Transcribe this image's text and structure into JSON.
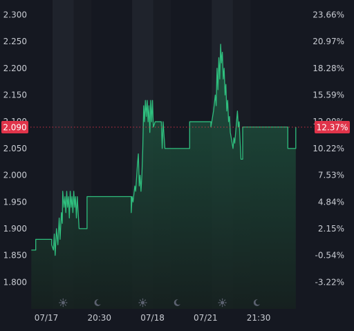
{
  "chart_data": {
    "type": "line",
    "y_ticks": [
      "2.300",
      "2.250",
      "2.200",
      "2.150",
      "2.100",
      "2.050",
      "2.000",
      "1.950",
      "1.900",
      "1.850",
      "1.800"
    ],
    "y_tick_values": [
      2.3,
      2.25,
      2.2,
      2.15,
      2.1,
      2.05,
      2.0,
      1.95,
      1.9,
      1.85,
      1.8
    ],
    "pct_ticks": [
      "23.66%",
      "20.97%",
      "18.28%",
      "15.59%",
      "12.90%",
      "10.22%",
      "7.53%",
      "4.84%",
      "2.15%",
      "-0.54%",
      "-3.22%"
    ],
    "x_ticks": [
      {
        "label": "07/17",
        "t": 0.3
      },
      {
        "label": "20:30",
        "t": 6.3
      },
      {
        "label": "07/18",
        "t": 12.3
      },
      {
        "label": "07/21",
        "t": 18.3
      },
      {
        "label": "21:30",
        "t": 24.3
      }
    ],
    "x_range": [
      -1.5,
      30
    ],
    "ylim": [
      1.75,
      2.32
    ],
    "current_value": "2.090",
    "current_value_num": 2.09,
    "current_pct": "12.37%",
    "bands": [
      {
        "from": 1.0,
        "to": 3.4,
        "kind": "night"
      },
      {
        "from": 3.4,
        "to": 5.4,
        "kind": "day"
      },
      {
        "from": 10.0,
        "to": 12.4,
        "kind": "night"
      },
      {
        "from": 12.4,
        "to": 14.4,
        "kind": "day"
      },
      {
        "from": 19.0,
        "to": 21.4,
        "kind": "night"
      },
      {
        "from": 21.4,
        "to": 23.4,
        "kind": "day"
      }
    ],
    "markers": [
      {
        "kind": "sun",
        "t": 2.2,
        "icon": "sun-icon"
      },
      {
        "kind": "moon",
        "t": 6.1,
        "icon": "moon-icon"
      },
      {
        "kind": "sun",
        "t": 11.2,
        "icon": "sun-icon"
      },
      {
        "kind": "moon",
        "t": 15.1,
        "icon": "moon-icon"
      },
      {
        "kind": "sun",
        "t": 20.2,
        "icon": "sun-icon"
      },
      {
        "kind": "moon",
        "t": 24.1,
        "icon": "moon-icon"
      }
    ],
    "series": [
      {
        "points": [
          [
            -1.4,
            1.86
          ],
          [
            -0.9,
            1.86
          ],
          [
            -0.9,
            1.88
          ],
          [
            0.9,
            1.88
          ],
          [
            0.9,
            1.87
          ],
          [
            1.1,
            1.86
          ],
          [
            1.2,
            1.89
          ],
          [
            1.3,
            1.85
          ],
          [
            1.45,
            1.9
          ],
          [
            1.6,
            1.87
          ],
          [
            1.75,
            1.92
          ],
          [
            1.85,
            1.88
          ],
          [
            2.0,
            1.93
          ],
          [
            2.1,
            1.91
          ],
          [
            2.15,
            1.97
          ],
          [
            2.3,
            1.94
          ],
          [
            2.4,
            1.96
          ],
          [
            2.5,
            1.93
          ],
          [
            2.6,
            1.97
          ],
          [
            2.7,
            1.94
          ],
          [
            2.8,
            1.96
          ],
          [
            2.9,
            1.92
          ],
          [
            3.0,
            1.97
          ],
          [
            3.1,
            1.94
          ],
          [
            3.2,
            1.96
          ],
          [
            3.3,
            1.93
          ],
          [
            3.4,
            1.97
          ],
          [
            3.5,
            1.94
          ],
          [
            3.6,
            1.96
          ],
          [
            3.7,
            1.92
          ],
          [
            3.8,
            1.96
          ],
          [
            3.9,
            1.93
          ],
          [
            4.0,
            1.9
          ],
          [
            4.9,
            1.9
          ],
          [
            4.9,
            1.96
          ],
          [
            9.9,
            1.96
          ],
          [
            9.9,
            1.93
          ],
          [
            10.0,
            1.96
          ],
          [
            10.1,
            1.95
          ],
          [
            10.3,
            1.98
          ],
          [
            10.4,
            1.97
          ],
          [
            10.6,
            2.02
          ],
          [
            10.7,
            2.04
          ],
          [
            10.8,
            1.98
          ],
          [
            10.9,
            2.0
          ],
          [
            11.0,
            1.97
          ],
          [
            11.1,
            2.0
          ],
          [
            11.2,
            2.05
          ],
          [
            11.3,
            2.13
          ],
          [
            11.4,
            2.1
          ],
          [
            11.5,
            2.14
          ],
          [
            11.6,
            2.11
          ],
          [
            11.7,
            2.14
          ],
          [
            11.8,
            2.1
          ],
          [
            11.9,
            2.13
          ],
          [
            12.0,
            2.08
          ],
          [
            12.1,
            2.14
          ],
          [
            12.2,
            2.1
          ],
          [
            12.3,
            2.14
          ],
          [
            12.4,
            2.09
          ],
          [
            12.6,
            2.1
          ],
          [
            12.8,
            2.1
          ],
          [
            13.0,
            2.1
          ],
          [
            13.3,
            2.1
          ],
          [
            13.4,
            2.05
          ],
          [
            13.5,
            2.1
          ],
          [
            13.7,
            2.05
          ],
          [
            16.5,
            2.05
          ],
          [
            16.5,
            2.1
          ],
          [
            18.9,
            2.1
          ],
          [
            18.9,
            2.09
          ],
          [
            19.0,
            2.1
          ],
          [
            19.2,
            2.12
          ],
          [
            19.4,
            2.15
          ],
          [
            19.5,
            2.13
          ],
          [
            19.6,
            2.2
          ],
          [
            19.7,
            2.16
          ],
          [
            19.8,
            2.22
          ],
          [
            19.9,
            2.18
          ],
          [
            20.0,
            2.245
          ],
          [
            20.1,
            2.21
          ],
          [
            20.2,
            2.23
          ],
          [
            20.3,
            2.18
          ],
          [
            20.4,
            2.2
          ],
          [
            20.5,
            2.15
          ],
          [
            20.6,
            2.17
          ],
          [
            20.7,
            2.12
          ],
          [
            20.8,
            2.14
          ],
          [
            20.9,
            2.1
          ],
          [
            21.0,
            2.11
          ],
          [
            21.1,
            2.08
          ],
          [
            21.2,
            2.07
          ],
          [
            21.3,
            2.06
          ],
          [
            21.4,
            2.05
          ],
          [
            21.5,
            2.07
          ],
          [
            21.6,
            2.06
          ],
          [
            21.8,
            2.1
          ],
          [
            21.9,
            2.12
          ],
          [
            22.0,
            2.09
          ],
          [
            22.1,
            2.1
          ],
          [
            22.3,
            2.03
          ],
          [
            22.5,
            2.03
          ],
          [
            22.5,
            2.09
          ],
          [
            27.6,
            2.09
          ],
          [
            27.6,
            2.05
          ],
          [
            28.5,
            2.05
          ],
          [
            28.5,
            2.09
          ]
        ]
      }
    ],
    "grid": false,
    "legend": "none"
  },
  "colors": {
    "background": "#151821",
    "band_night": "#1f232c",
    "band_day": "#191c24",
    "line": "#2fbf7e",
    "area_top": "#1f5a44",
    "area_bottom": "#16211f",
    "badge": "#e0344a",
    "dotted": "#e0344a",
    "tick_text": "#c9ccd3",
    "marker": "#5c6270"
  }
}
